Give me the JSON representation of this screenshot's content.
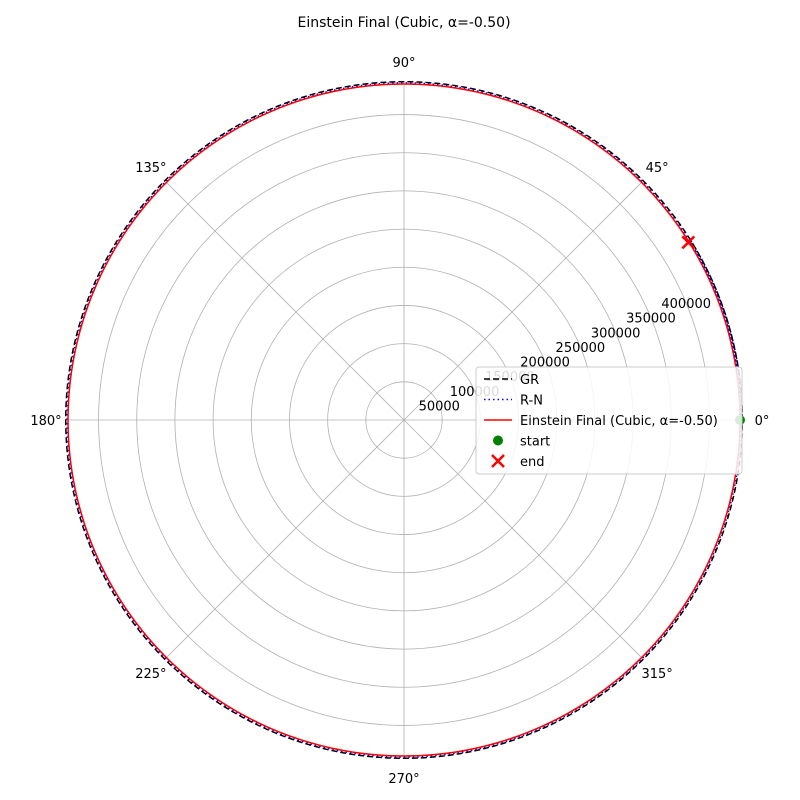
{
  "chart_data": {
    "type": "polar-line",
    "title": "Einstein Final (Cubic, α=-0.50)",
    "rmax": 440000,
    "r_ticks": [
      50000,
      100000,
      150000,
      200000,
      250000,
      300000,
      350000,
      400000
    ],
    "r_tick_labels": [
      "50000",
      "100000",
      "150000",
      "200000",
      "250000",
      "300000",
      "350000",
      "400000"
    ],
    "r_label_angle_deg": 22.5,
    "theta_ticks_deg": [
      0,
      45,
      90,
      135,
      180,
      225,
      270,
      315
    ],
    "theta_tick_labels": [
      "0°",
      "45°",
      "90°",
      "135°",
      "180°",
      "225°",
      "270°",
      "315°"
    ],
    "grid": true,
    "legend_position": "center-right",
    "series": [
      {
        "name": "GR",
        "style": "dashed",
        "color": "#000000",
        "r": 443000,
        "theta_start_deg": 0,
        "theta_end_deg": 392
      },
      {
        "name": "R-N",
        "style": "dotted",
        "color": "#0000ff",
        "r": 441500,
        "theta_start_deg": 0,
        "theta_end_deg": 392
      },
      {
        "name": "Einstein Final (Cubic, α=-0.50)",
        "style": "solid",
        "color": "#ff0000",
        "r": 440000,
        "theta_start_deg": 0,
        "theta_end_deg": 392
      }
    ],
    "markers": [
      {
        "name": "start",
        "shape": "circle",
        "color": "#008000",
        "r": 440000,
        "theta_deg": 0
      },
      {
        "name": "end",
        "shape": "x",
        "color": "#ff0000",
        "r": 439000,
        "theta_deg": 32
      }
    ]
  }
}
